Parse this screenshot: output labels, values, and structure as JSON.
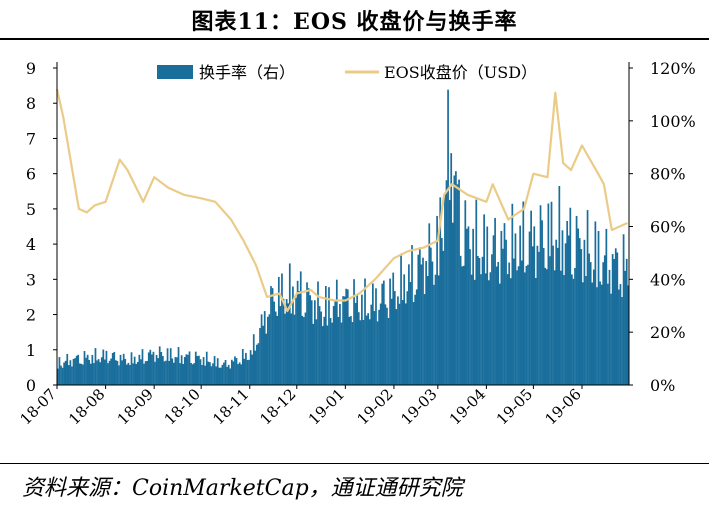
{
  "figure_title": "图表11：EOS 收盘价与换手率",
  "source": "资料来源：CoinMarketCap，通证通研究院",
  "colors": {
    "bar": "#1a6e9c",
    "line": "#ebcb88",
    "axis": "#000000"
  },
  "chart_data": {
    "type": "bar+line",
    "x_tick_labels": [
      "18-07",
      "18-08",
      "18-09",
      "18-10",
      "18-11",
      "18-12",
      "19-01",
      "19-02",
      "19-03",
      "19-04",
      "19-05",
      "19-06"
    ],
    "left_axis": {
      "ylim": [
        0,
        9
      ],
      "ticks": [
        "0",
        "1",
        "2",
        "3",
        "4",
        "5",
        "6",
        "7",
        "8",
        "9"
      ]
    },
    "right_axis": {
      "ylim": [
        0,
        120
      ],
      "ticks": [
        "0%",
        "20%",
        "40%",
        "60%",
        "80%",
        "100%",
        "120%"
      ]
    },
    "legend_position": "top",
    "series": [
      {
        "name": "换手率（右）",
        "type": "bar",
        "unit": "%",
        "x": [
          "18-07-01",
          "18-07-16",
          "18-08-01",
          "18-08-16",
          "18-09-01",
          "18-09-16",
          "18-10-01",
          "18-10-16",
          "18-11-01",
          "18-11-16",
          "18-12-01",
          "18-12-16",
          "19-01-01",
          "19-01-16",
          "19-02-01",
          "19-02-16",
          "19-03-01",
          "19-03-08",
          "19-03-16",
          "19-04-01",
          "19-04-16",
          "19-05-01",
          "19-05-16",
          "19-06-01",
          "19-06-16",
          "19-06-30"
        ],
        "values": [
          10,
          12,
          13,
          11,
          14,
          13,
          12,
          9,
          14,
          40,
          42,
          35,
          38,
          36,
          42,
          52,
          62,
          108,
          68,
          60,
          62,
          65,
          68,
          62,
          55,
          52
        ]
      },
      {
        "name": "EOS收盘价（USD）",
        "type": "line",
        "unit": "USD",
        "x": [
          "18-07-01",
          "18-07-05",
          "18-07-15",
          "18-07-20",
          "18-07-25",
          "18-08-01",
          "18-08-10",
          "18-08-15",
          "18-08-25",
          "18-09-01",
          "18-09-10",
          "18-09-20",
          "18-10-01",
          "18-10-10",
          "18-10-20",
          "18-10-28",
          "18-11-05",
          "18-11-12",
          "18-11-20",
          "18-11-25",
          "18-12-01",
          "18-12-10",
          "18-12-15",
          "18-12-25",
          "19-01-01",
          "19-01-10",
          "19-01-20",
          "19-02-01",
          "19-02-10",
          "19-02-20",
          "19-03-01",
          "19-03-05",
          "19-03-10",
          "19-03-20",
          "19-04-01",
          "19-04-05",
          "19-04-15",
          "19-04-25",
          "19-05-01",
          "19-05-10",
          "19-05-15",
          "19-05-20",
          "19-05-25",
          "19-06-01",
          "19-06-10",
          "19-06-15",
          "19-06-20",
          "19-06-30"
        ],
        "values": [
          8.4,
          7.6,
          5.0,
          4.9,
          5.1,
          5.2,
          6.4,
          6.1,
          5.2,
          5.9,
          5.6,
          5.4,
          5.3,
          5.2,
          4.7,
          4.1,
          3.4,
          2.5,
          2.6,
          2.1,
          2.6,
          2.7,
          2.5,
          2.4,
          2.4,
          2.6,
          3.0,
          3.6,
          3.8,
          3.9,
          4.1,
          5.4,
          5.7,
          5.4,
          5.2,
          5.7,
          4.7,
          5.0,
          6.0,
          5.9,
          8.3,
          6.3,
          6.1,
          6.8,
          6.1,
          5.7,
          4.4,
          4.6
        ]
      }
    ]
  }
}
